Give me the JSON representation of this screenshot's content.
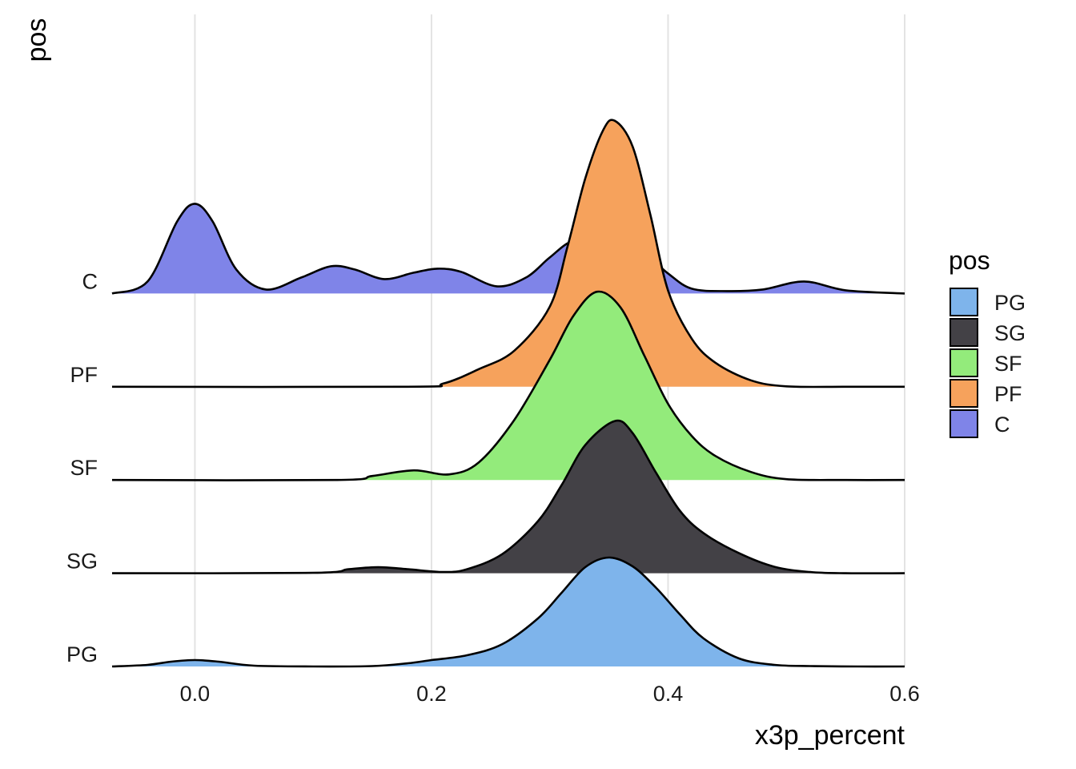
{
  "chart_data": {
    "type": "ridgeline",
    "xlabel": "x3p_percent",
    "ylabel": "pos",
    "xlim": [
      -0.07,
      0.6
    ],
    "x_ticks": [
      0.0,
      0.2,
      0.4,
      0.6
    ],
    "x_tick_labels": [
      "0.0",
      "0.2",
      "0.4",
      "0.6"
    ],
    "categories": [
      "PG",
      "SG",
      "SF",
      "PF",
      "C"
    ],
    "grid": "vertical major",
    "legend": {
      "title": "pos",
      "placement": "right",
      "entries": [
        "PG",
        "SG",
        "SF",
        "PF",
        "C"
      ]
    },
    "series": [
      {
        "name": "PG",
        "color": "#7EB4EB",
        "x": [
          -0.07,
          -0.04,
          -0.02,
          0.0,
          0.02,
          0.05,
          0.1,
          0.15,
          0.18,
          0.2,
          0.23,
          0.26,
          0.29,
          0.31,
          0.33,
          0.35,
          0.37,
          0.39,
          0.41,
          0.43,
          0.46,
          0.49,
          0.52,
          0.56,
          0.6
        ],
        "y": [
          0.0,
          0.2,
          0.6,
          0.8,
          0.6,
          0.1,
          0.0,
          0.05,
          0.4,
          0.8,
          1.4,
          2.8,
          6.0,
          9.2,
          12.4,
          13.6,
          12.5,
          9.8,
          6.5,
          3.5,
          1.0,
          0.2,
          0.05,
          0.0,
          0.0
        ]
      },
      {
        "name": "SG",
        "color": "#434146",
        "x": [
          -0.07,
          0.1,
          0.13,
          0.155,
          0.18,
          0.21,
          0.23,
          0.26,
          0.29,
          0.31,
          0.33,
          0.355,
          0.37,
          0.39,
          0.41,
          0.43,
          0.46,
          0.49,
          0.52,
          0.55,
          0.6
        ],
        "y": [
          0.0,
          0.05,
          0.5,
          0.75,
          0.5,
          0.15,
          0.5,
          2.4,
          6.5,
          11.0,
          16.0,
          19.0,
          17.5,
          12.5,
          7.8,
          5.0,
          2.5,
          0.8,
          0.15,
          0.0,
          0.0
        ]
      },
      {
        "name": "SF",
        "color": "#93EB7B",
        "x": [
          -0.07,
          0.12,
          0.15,
          0.185,
          0.215,
          0.24,
          0.27,
          0.3,
          0.32,
          0.34,
          0.36,
          0.38,
          0.4,
          0.42,
          0.44,
          0.47,
          0.5,
          0.55,
          0.6
        ],
        "y": [
          0.0,
          0.0,
          0.5,
          1.2,
          0.7,
          2.2,
          7.5,
          15.0,
          20.5,
          23.5,
          21.5,
          15.5,
          9.5,
          5.5,
          3.0,
          1.0,
          0.1,
          0.0,
          0.0
        ]
      },
      {
        "name": "PF",
        "color": "#F6A25C",
        "x": [
          -0.07,
          0.18,
          0.21,
          0.24,
          0.27,
          0.3,
          0.315,
          0.33,
          0.345,
          0.355,
          0.37,
          0.385,
          0.4,
          0.42,
          0.44,
          0.47,
          0.5,
          0.55,
          0.6
        ],
        "y": [
          0.0,
          0.0,
          0.4,
          2.2,
          4.5,
          10.0,
          17.5,
          26.0,
          32.0,
          33.2,
          30.0,
          21.5,
          12.0,
          6.0,
          3.0,
          0.8,
          0.05,
          0.0,
          0.0
        ]
      },
      {
        "name": "C",
        "color": "#7F84E8",
        "x": [
          -0.07,
          -0.04,
          -0.015,
          0.0,
          0.015,
          0.035,
          0.06,
          0.09,
          0.115,
          0.135,
          0.16,
          0.185,
          0.205,
          0.225,
          0.255,
          0.28,
          0.3,
          0.32,
          0.35,
          0.38,
          0.4,
          0.42,
          0.45,
          0.48,
          0.515,
          0.55,
          0.6
        ],
        "y": [
          0.0,
          1.5,
          9.0,
          11.2,
          9.0,
          3.0,
          0.5,
          2.0,
          3.4,
          3.0,
          1.8,
          2.6,
          3.1,
          2.7,
          0.9,
          2.0,
          4.5,
          6.6,
          7.0,
          5.0,
          2.5,
          0.6,
          0.3,
          0.5,
          1.5,
          0.4,
          0.0
        ]
      }
    ]
  }
}
